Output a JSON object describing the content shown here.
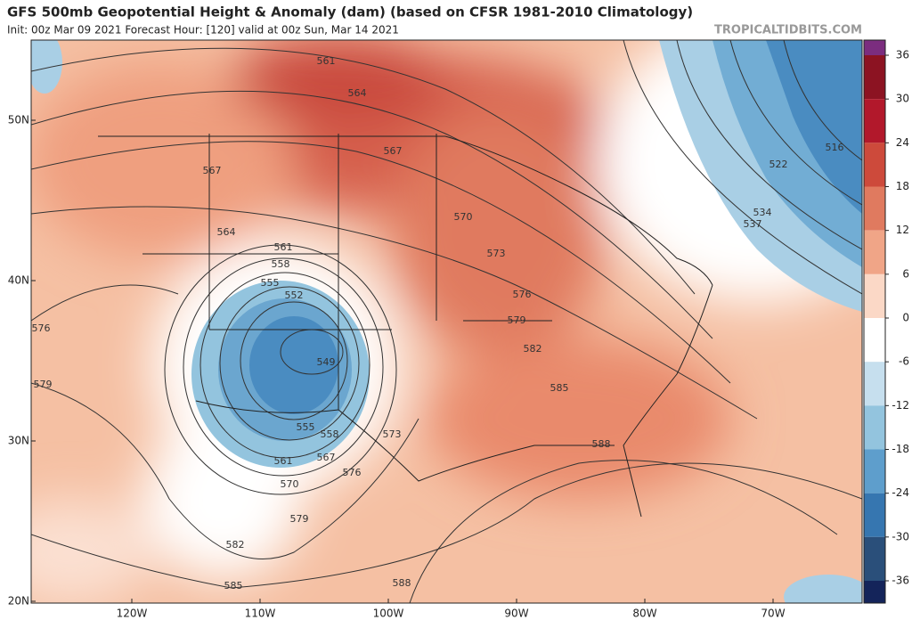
{
  "header": {
    "title": "GFS 500mb Geopotential Height & Anomaly (dam) (based on CFSR 1981-2010 Climatology)",
    "subtitle": "Init: 00z Mar 09 2021   Forecast Hour: [120]   valid at 00z Sun, Mar 14 2021",
    "brand": "TROPICALTIDBITS.COM"
  },
  "axes": {
    "lat_labels": [
      "50N",
      "40N",
      "30N",
      "20N"
    ],
    "lon_labels": [
      "120W",
      "110W",
      "100W",
      "90W",
      "80W",
      "70W"
    ]
  },
  "colorbar": {
    "ticks": [
      36,
      30,
      24,
      18,
      12,
      6,
      0,
      -6,
      -12,
      -18,
      -24,
      -30,
      -36
    ],
    "colors": [
      "#7b2d7f",
      "#8c1322",
      "#b2182b",
      "#cd4a3b",
      "#e07a5f",
      "#f0a587",
      "#fbd8c6",
      "#ffffff",
      "#c6dfee",
      "#93c4de",
      "#5e9ecc",
      "#3676b0",
      "#2a4f7a",
      "#14245a"
    ]
  },
  "contour_labels": [
    "561",
    "564",
    "567",
    "567",
    "570",
    "573",
    "576",
    "579",
    "582",
    "585",
    "588",
    "564",
    "561",
    "558",
    "555",
    "552",
    "549",
    "555",
    "558",
    "561",
    "567",
    "570",
    "573",
    "576",
    "579",
    "582",
    "585",
    "588",
    "576",
    "579",
    "516",
    "522",
    "534",
    "537"
  ]
}
